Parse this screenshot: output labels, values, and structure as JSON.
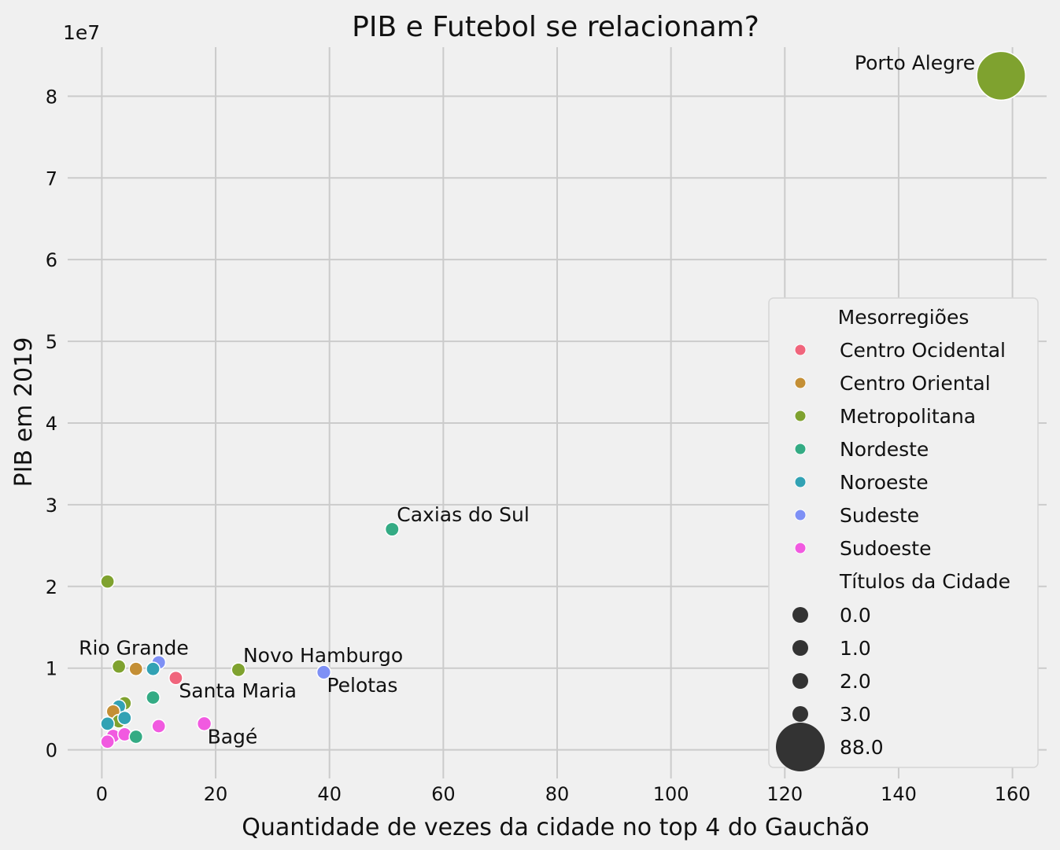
{
  "chart_data": {
    "type": "scatter",
    "title": "PIB e Futebol se relacionam?",
    "xlabel": "Quantidade de vezes da cidade no top 4 do Gauchão",
    "ylabel": "PIB em 2019",
    "y_offset_label": "1e7",
    "xlim": [
      -6,
      166
    ],
    "ylim": [
      -3500000,
      86000000
    ],
    "x_ticks": [
      0,
      20,
      40,
      60,
      80,
      100,
      120,
      140,
      160
    ],
    "x_tick_labels": [
      "0",
      "20",
      "40",
      "60",
      "80",
      "100",
      "120",
      "140",
      "160"
    ],
    "y_ticks": [
      0,
      10000000,
      20000000,
      30000000,
      40000000,
      50000000,
      60000000,
      70000000,
      80000000
    ],
    "y_tick_labels": [
      "0",
      "1",
      "2",
      "3",
      "4",
      "5",
      "6",
      "7",
      "8"
    ],
    "grid": true,
    "legend_position": "lower-right",
    "hue_legend": {
      "title": "Mesorregiões",
      "entries": [
        {
          "name": "Centro Ocidental",
          "color": "#f0657c"
        },
        {
          "name": "Centro Oriental",
          "color": "#c48f35"
        },
        {
          "name": "Metropolitana",
          "color": "#7fa22f"
        },
        {
          "name": "Nordeste",
          "color": "#34ab84"
        },
        {
          "name": "Noroeste",
          "color": "#32a2b4"
        },
        {
          "name": "Sudeste",
          "color": "#7e90f5"
        },
        {
          "name": "Sudoeste",
          "color": "#f15ae0"
        }
      ]
    },
    "size_legend": {
      "title": "Títulos da Cidade",
      "entries": [
        {
          "label": "0.0",
          "value": 0
        },
        {
          "label": "1.0",
          "value": 1
        },
        {
          "label": "2.0",
          "value": 2
        },
        {
          "label": "3.0",
          "value": 3
        },
        {
          "label": "88.0",
          "value": 88
        }
      ],
      "color": "#333333"
    },
    "points": [
      {
        "x": 158,
        "y": 82500000,
        "region": "Metropolitana",
        "titles": 88,
        "label": "Porto Alegre",
        "label_pos": "left"
      },
      {
        "x": 51,
        "y": 27000000,
        "region": "Nordeste",
        "titles": 1,
        "label": "Caxias do Sul",
        "label_pos": "above-right"
      },
      {
        "x": 1,
        "y": 20600000,
        "region": "Metropolitana",
        "titles": 0
      },
      {
        "x": 24,
        "y": 9800000,
        "region": "Metropolitana",
        "titles": 1,
        "label": "Novo Hamburgo",
        "label_pos": "above-right"
      },
      {
        "x": 39,
        "y": 9500000,
        "region": "Sudeste",
        "titles": 2,
        "label": "Pelotas",
        "label_pos": "below-right"
      },
      {
        "x": 10,
        "y": 10700000,
        "region": "Sudeste",
        "titles": 1,
        "label": "Rio Grande",
        "label_pos": "above-left"
      },
      {
        "x": 13,
        "y": 8800000,
        "region": "Centro Ocidental",
        "titles": 0,
        "label": "Santa Maria",
        "label_pos": "below-right"
      },
      {
        "x": 18,
        "y": 3200000,
        "region": "Sudoeste",
        "titles": 3,
        "label": "Bagé",
        "label_pos": "below-right"
      },
      {
        "x": 3,
        "y": 10200000,
        "region": "Metropolitana",
        "titles": 0
      },
      {
        "x": 6,
        "y": 9900000,
        "region": "Centro Oriental",
        "titles": 0
      },
      {
        "x": 9,
        "y": 9900000,
        "region": "Noroeste",
        "titles": 0
      },
      {
        "x": 9,
        "y": 6400000,
        "region": "Nordeste",
        "titles": 0
      },
      {
        "x": 4,
        "y": 5700000,
        "region": "Metropolitana",
        "titles": 0
      },
      {
        "x": 3,
        "y": 5300000,
        "region": "Noroeste",
        "titles": 0
      },
      {
        "x": 2,
        "y": 4700000,
        "region": "Centro Oriental",
        "titles": 0
      },
      {
        "x": 3,
        "y": 3500000,
        "region": "Metropolitana",
        "titles": 0
      },
      {
        "x": 4,
        "y": 3900000,
        "region": "Noroeste",
        "titles": 0
      },
      {
        "x": 1,
        "y": 3200000,
        "region": "Noroeste",
        "titles": 0
      },
      {
        "x": 10,
        "y": 2900000,
        "region": "Sudoeste",
        "titles": 0
      },
      {
        "x": 2,
        "y": 1700000,
        "region": "Sudoeste",
        "titles": 0
      },
      {
        "x": 4,
        "y": 1900000,
        "region": "Sudoeste",
        "titles": 0
      },
      {
        "x": 6,
        "y": 1600000,
        "region": "Nordeste",
        "titles": 0
      },
      {
        "x": 1,
        "y": 1000000,
        "region": "Sudoeste",
        "titles": 0
      }
    ]
  }
}
